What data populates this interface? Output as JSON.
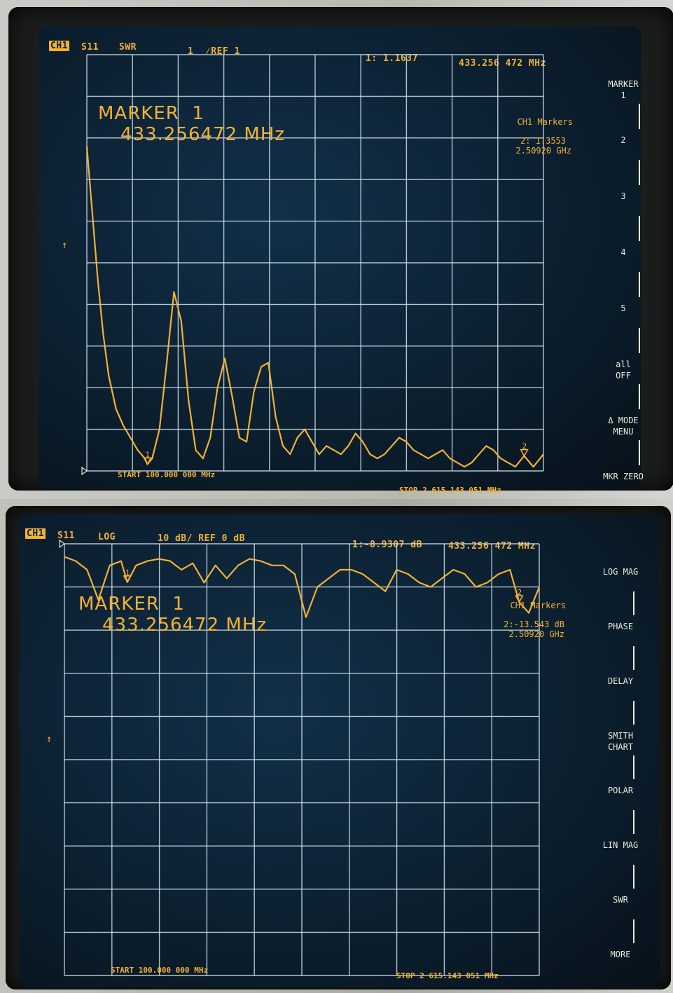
{
  "chart_data": [
    {
      "type": "line",
      "channel": "CH1",
      "parameter": "S11",
      "format": "SWR",
      "scale": "1  ⁄REF 1",
      "marker_readout": "1: 1.1637",
      "marker_freq": "433.256 472 MHz",
      "marker_title": "MARKER  1",
      "marker_title_freq": "433.256472 MHz",
      "markers_header": "CH1 Markers",
      "marker2_value": "2: 1.3553",
      "marker2_freq": "2.50920 GHz",
      "start": "START 100.000 000 MHz",
      "stop": "STOP 2 615.143 051 MHz",
      "xlim": [
        100.0,
        2615.143051
      ],
      "ylim": [
        1,
        11
      ],
      "x": [
        100,
        130,
        160,
        190,
        220,
        260,
        300,
        340,
        380,
        420,
        433.256,
        460,
        500,
        540,
        580,
        620,
        660,
        700,
        740,
        780,
        820,
        860,
        900,
        940,
        980,
        1020,
        1060,
        1100,
        1140,
        1180,
        1220,
        1260,
        1300,
        1340,
        1380,
        1420,
        1460,
        1500,
        1540,
        1580,
        1620,
        1660,
        1700,
        1740,
        1780,
        1820,
        1860,
        1900,
        1940,
        1980,
        2020,
        2060,
        2100,
        2140,
        2180,
        2220,
        2260,
        2300,
        2340,
        2380,
        2420,
        2460,
        2509.2,
        2560,
        2615
      ],
      "y": [
        8.8,
        7.2,
        5.6,
        4.3,
        3.3,
        2.5,
        2.1,
        1.8,
        1.5,
        1.3,
        1.16,
        1.3,
        2.0,
        3.6,
        5.3,
        4.6,
        2.7,
        1.5,
        1.3,
        1.8,
        3.0,
        3.7,
        2.8,
        1.8,
        1.7,
        2.9,
        3.5,
        3.6,
        2.3,
        1.6,
        1.4,
        1.8,
        2.0,
        1.7,
        1.4,
        1.6,
        1.5,
        1.4,
        1.6,
        1.9,
        1.7,
        1.4,
        1.3,
        1.4,
        1.6,
        1.8,
        1.7,
        1.5,
        1.4,
        1.3,
        1.4,
        1.5,
        1.3,
        1.2,
        1.1,
        1.2,
        1.4,
        1.6,
        1.5,
        1.3,
        1.2,
        1.1,
        1.36,
        1.1,
        1.4
      ],
      "grid": true,
      "markers": [
        {
          "label": "1",
          "x": 433.256
        },
        {
          "label": "2",
          "x": 2509.2
        }
      ]
    },
    {
      "type": "line",
      "channel": "CH1",
      "parameter": "S11",
      "format": "LOG",
      "scale": "10 dB/ REF 0 dB",
      "marker_readout": "1:-8.9307 dB",
      "marker_freq": "433.256 472 MHz",
      "marker_title": "MARKER  1",
      "marker_title_freq": "433.256472 MHz",
      "markers_header": "CH1 Markers",
      "marker2_value": "2:-13.543 dB",
      "marker2_freq": "2.50920 GHz",
      "start": "START 100.000 000 MHz",
      "stop": "STOP 2 615.143 051 MHz",
      "xlim": [
        100.0,
        2615.143051
      ],
      "ylim": [
        -100,
        0
      ],
      "reference_level": 0,
      "x": [
        100,
        160,
        220,
        280,
        340,
        400,
        433.256,
        480,
        540,
        600,
        660,
        720,
        780,
        840,
        900,
        960,
        1020,
        1080,
        1140,
        1200,
        1260,
        1320,
        1380,
        1440,
        1500,
        1560,
        1620,
        1680,
        1740,
        1800,
        1860,
        1920,
        1980,
        2040,
        2100,
        2160,
        2220,
        2280,
        2340,
        2400,
        2460,
        2509.2,
        2560,
        2615
      ],
      "y": [
        -3,
        -4,
        -6,
        -13,
        -5,
        -4,
        -8.9,
        -5,
        -4,
        -3.5,
        -4,
        -6,
        -4.5,
        -9,
        -5,
        -8,
        -5,
        -3.5,
        -4,
        -5,
        -5,
        -7,
        -17,
        -10,
        -8,
        -6,
        -6,
        -7,
        -9,
        -11,
        -6,
        -7,
        -9,
        -10,
        -8,
        -6,
        -7,
        -10,
        -9,
        -7,
        -6,
        -13.5,
        -16,
        -10
      ],
      "grid": true,
      "markers": [
        {
          "label": "1",
          "x": 433.256
        },
        {
          "label": "2",
          "x": 2509.2
        }
      ]
    }
  ],
  "softkeys_top": [
    "MARKER\n1",
    "2",
    "3",
    "4",
    "5",
    "all\nOFF",
    "Δ MODE\nMENU",
    "MKR ZERO"
  ],
  "softkeys_bottom": [
    "LOG MAG",
    "PHASE",
    "DELAY",
    "SMITH\nCHART",
    "POLAR",
    "LIN MAG",
    "SWR",
    "MORE"
  ],
  "colors": {
    "trace": "#f2b233",
    "grid": "#cfe3ec",
    "screen": "#0b1d2a",
    "softkey_text": "#e8ead8"
  }
}
